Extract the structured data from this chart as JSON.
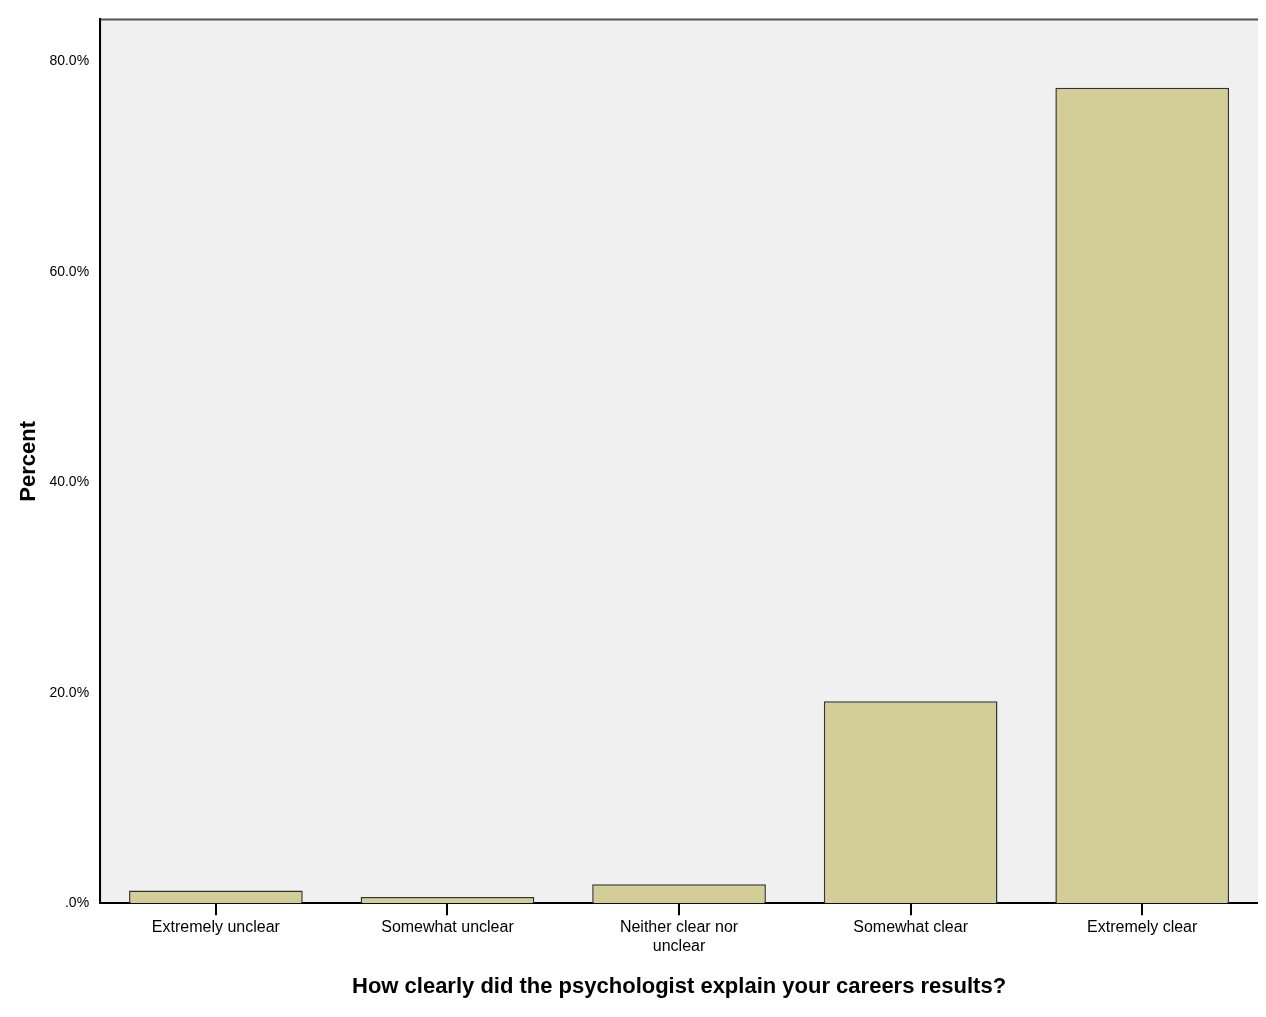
{
  "chart_data": {
    "type": "bar",
    "xlabel": "How clearly did the psychologist explain your careers results?",
    "ylabel": "Percent",
    "categories": [
      "Extremely unclear",
      "Somewhat unclear",
      "Neither clear nor unclear",
      "Somewhat clear",
      "Extremely clear"
    ],
    "values": [
      1.2,
      0.6,
      1.8,
      19.2,
      77.5
    ],
    "color": "#d3cd97",
    "ylim": [
      0,
      84
    ],
    "yticks": [
      {
        "value": 0,
        "label": ".0%"
      },
      {
        "value": 20,
        "label": "20.0%"
      },
      {
        "value": 40,
        "label": "40.0%"
      },
      {
        "value": 60,
        "label": "60.0%"
      },
      {
        "value": 80,
        "label": "80.0%"
      }
    ],
    "grid": false,
    "legend": false
  }
}
